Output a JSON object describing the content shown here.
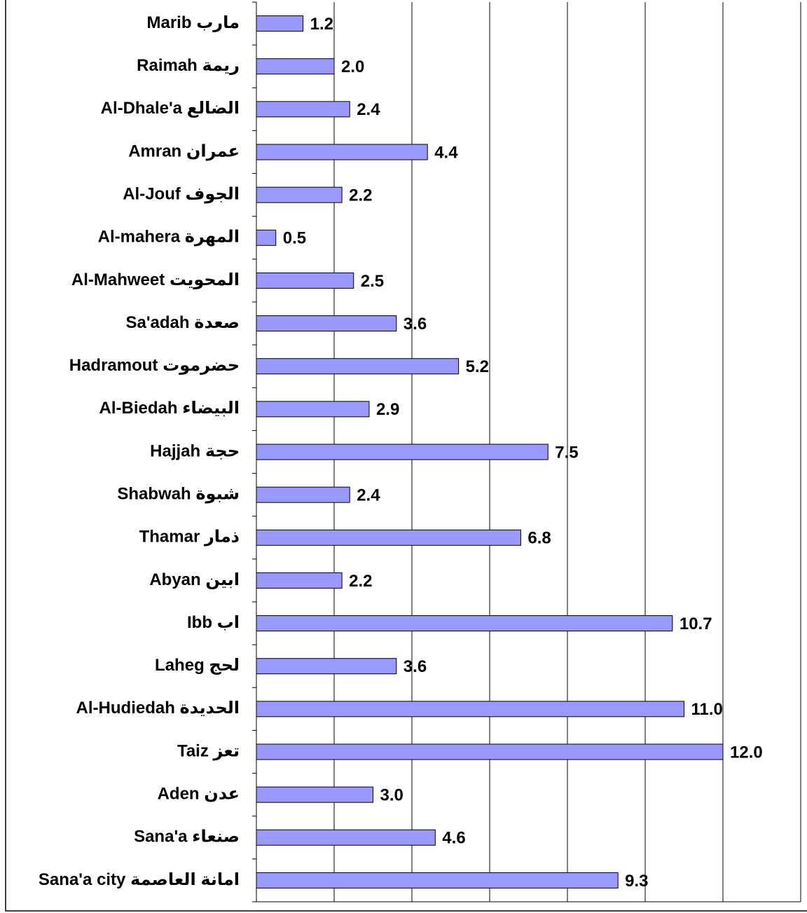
{
  "chart_data": {
    "type": "barh",
    "categories": [
      "Marib مارب",
      "Raimah ريمة",
      "Al-Dhale'a الضالع",
      "Amran عمران",
      "Al-Jouf الجوف",
      "Al-mahera المهرة",
      "Al-Mahweet المحويت",
      "Sa'adah صعدة",
      "Hadramout حضرموت",
      "Al-Biedah البيضاء",
      "Hajjah حجة",
      "Shabwah شبوة",
      "Thamar ذمار",
      "Abyan ابين",
      "Ibb اب",
      "Laheg لحج",
      "Al-Hudiedah الحديدة",
      "Taiz تعز",
      "Aden عدن",
      "Sana'a صنعاء",
      "Sana'a city امانة العاصمة"
    ],
    "values": [
      1.2,
      2.0,
      2.4,
      4.4,
      2.2,
      0.5,
      2.5,
      3.6,
      5.2,
      2.9,
      7.5,
      2.4,
      6.8,
      2.2,
      10.7,
      3.6,
      11.0,
      12.0,
      3.0,
      4.6,
      9.3
    ],
    "value_labels": [
      "1.2",
      "2.0",
      "2.4",
      "4.4",
      "2.2",
      "0.5",
      "2.5",
      "3.6",
      "5.2",
      "2.9",
      "7.5",
      "2.4",
      "6.8",
      "2.2",
      "10.7",
      "3.6",
      "11.0",
      "12.0",
      "3.0",
      "4.6",
      "9.3"
    ],
    "color": "#9999ff",
    "xlim": [
      0,
      14
    ],
    "xticks": [
      0,
      2,
      4,
      6,
      8,
      10,
      12,
      14
    ],
    "grid": true
  }
}
